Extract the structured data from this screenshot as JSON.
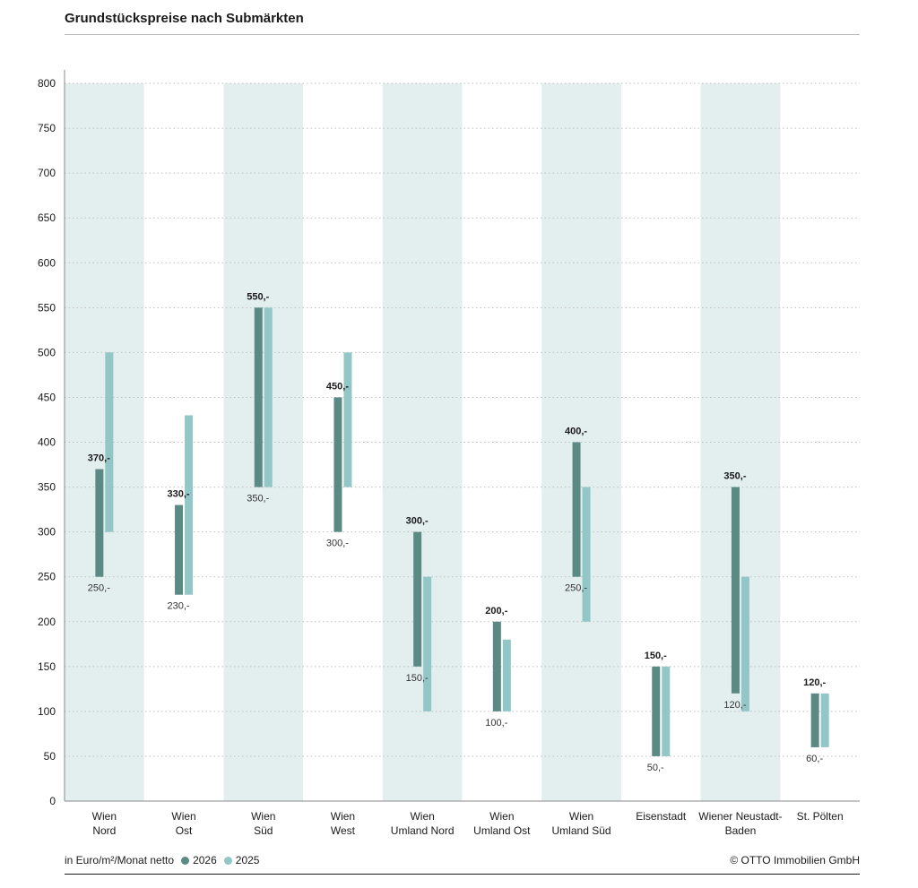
{
  "title": "Grundstückspreise nach Submärkten",
  "legend": {
    "unit": "in Euro/m²/Monat netto",
    "series": [
      "2026",
      "2025"
    ]
  },
  "copyright": "© OTTO Immobilien GmbH",
  "colors": {
    "series_2026": "#5b8a84",
    "series_2025": "#93c6c7",
    "band": "#e3efef",
    "grid": "#bdbdbd"
  },
  "chart_data": {
    "type": "range-bar",
    "ylim": [
      0,
      800
    ],
    "yticks": [
      0,
      50,
      100,
      150,
      200,
      250,
      300,
      350,
      400,
      450,
      500,
      550,
      600,
      650,
      700,
      750,
      800
    ],
    "grid": true,
    "categories": [
      [
        "Wien",
        "Nord"
      ],
      [
        "Wien",
        "Ost"
      ],
      [
        "Wien",
        "Süd"
      ],
      [
        "Wien",
        "West"
      ],
      [
        "Wien",
        "Umland Nord"
      ],
      [
        "Wien",
        "Umland Ost"
      ],
      [
        "Wien",
        "Umland Süd"
      ],
      [
        "Eisenstadt"
      ],
      [
        "Wiener Neustadt-",
        "Baden"
      ],
      [
        "St. Pölten"
      ]
    ],
    "shaded": [
      true,
      false,
      true,
      false,
      true,
      false,
      true,
      false,
      true,
      false
    ],
    "series": [
      {
        "name": "2026",
        "low": [
          250,
          230,
          350,
          300,
          150,
          100,
          250,
          50,
          120,
          60
        ],
        "high": [
          370,
          330,
          550,
          450,
          300,
          200,
          400,
          150,
          350,
          120
        ]
      },
      {
        "name": "2025",
        "low": [
          300,
          230,
          350,
          350,
          100,
          100,
          200,
          50,
          100,
          60
        ],
        "high": [
          500,
          430,
          550,
          500,
          250,
          180,
          350,
          150,
          250,
          120
        ]
      }
    ],
    "high_labels": [
      "370,-",
      "330,-",
      "550,-",
      "450,-",
      "300,-",
      "200,-",
      "400,-",
      "150,-",
      "350,-",
      "120,-"
    ],
    "low_labels": [
      "250,-",
      "230,-",
      "350,-",
      "300,-",
      "150,-",
      "100,-",
      "250,-",
      "50,-",
      "120,-",
      "60,-"
    ]
  }
}
